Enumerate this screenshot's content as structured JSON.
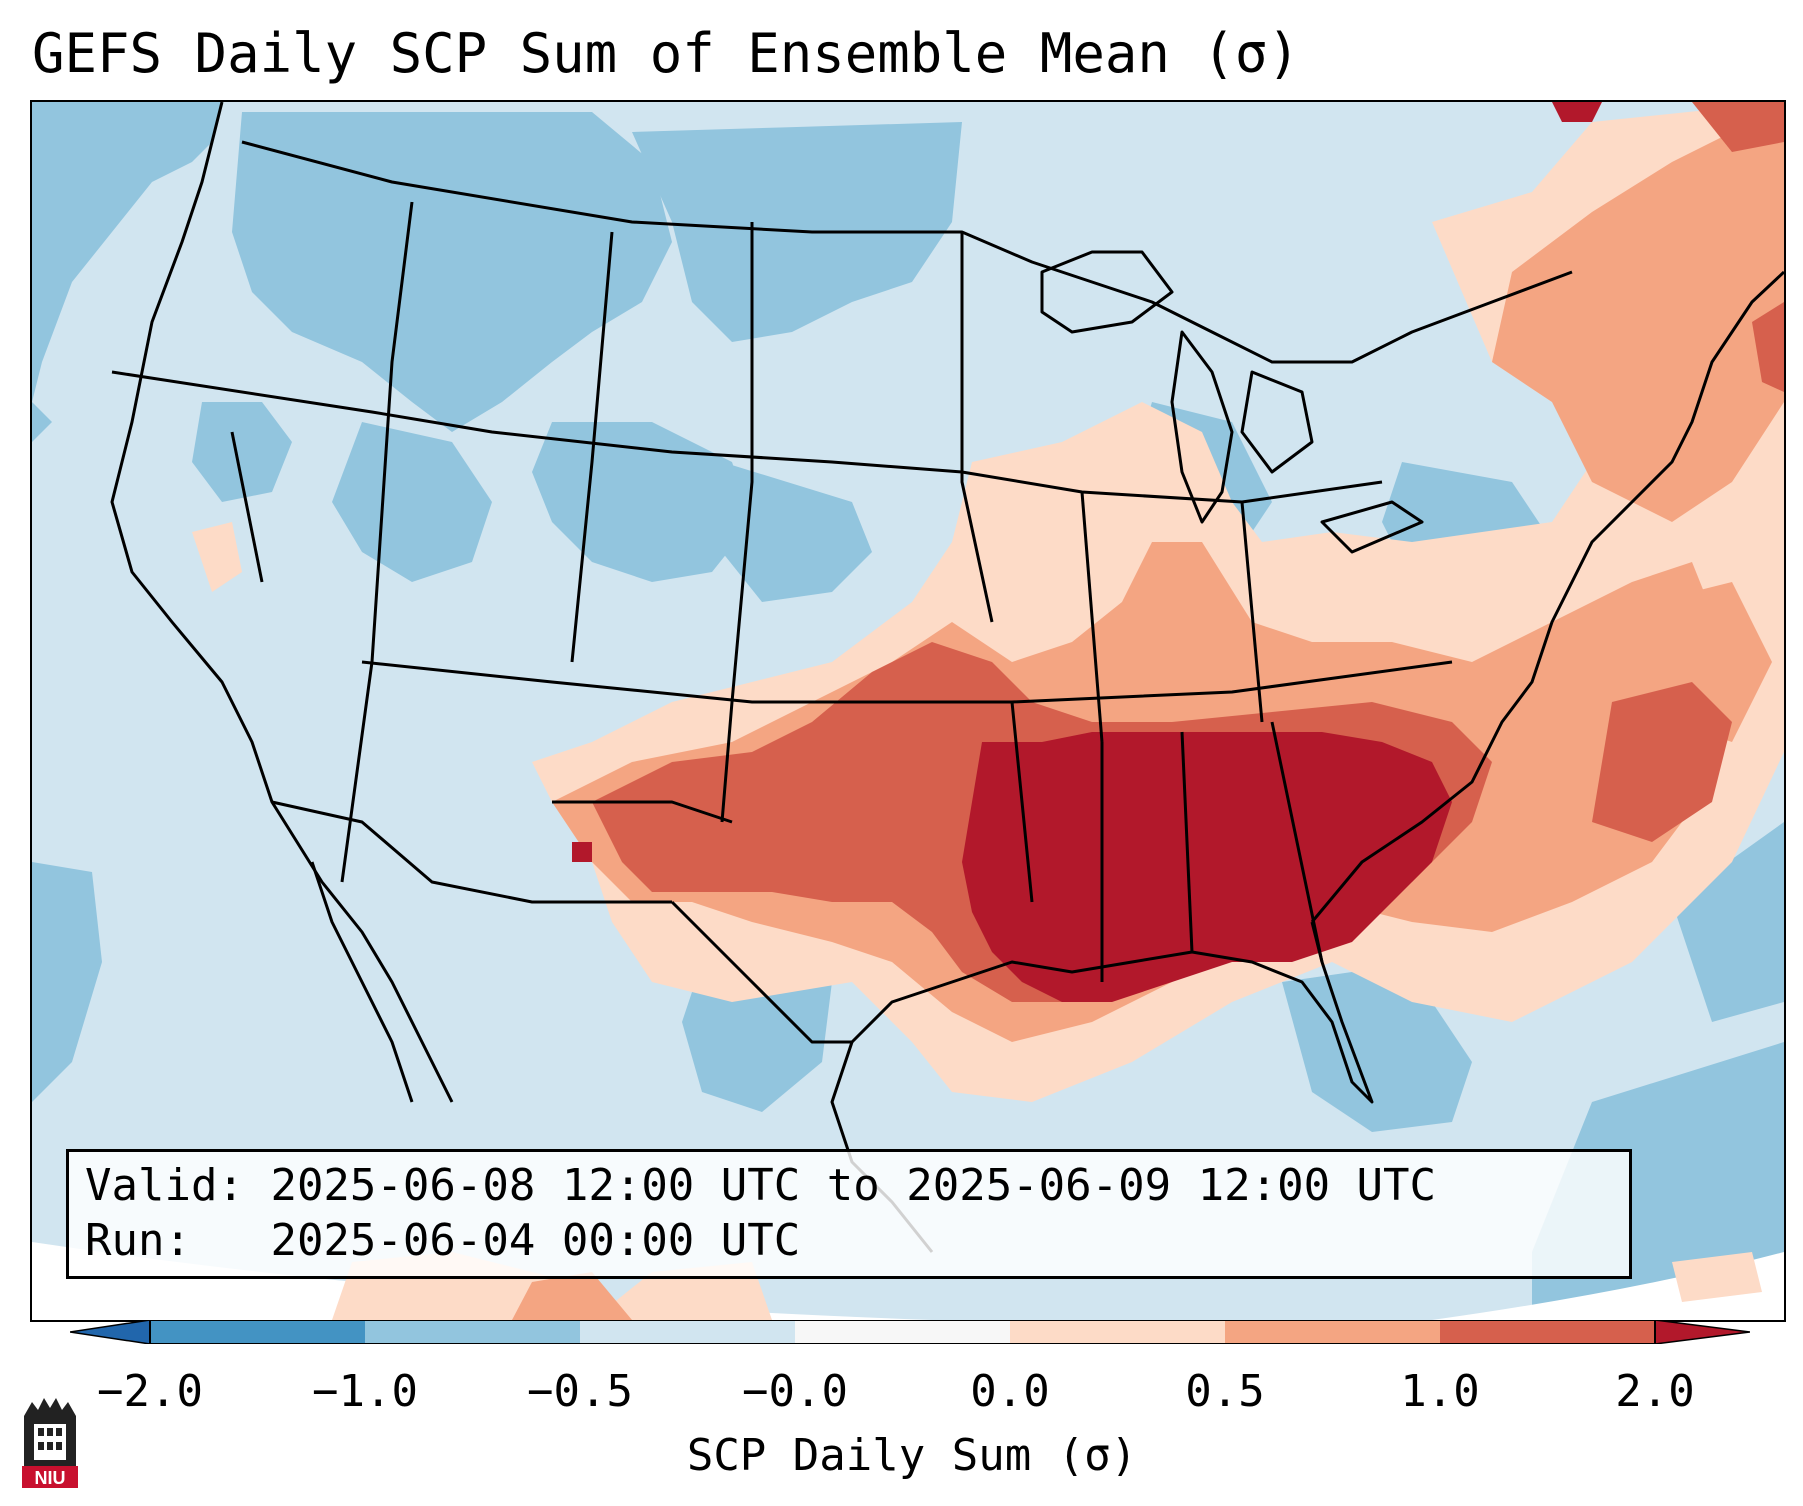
{
  "title": "GEFS Daily SCP Sum of Ensemble Mean (σ)",
  "info": {
    "valid_label": "Valid:",
    "valid_value": "2025-06-08 12:00 UTC to 2025-06-09 12:00 UTC",
    "run_label": "Run:",
    "run_value": "2025-06-04 00:00 UTC"
  },
  "colorbar": {
    "label": "SCP Daily Sum (σ)",
    "ticks": [
      "−2.0",
      "−1.0",
      "−0.5",
      "−0.0",
      "0.0",
      "0.5",
      "1.0",
      "2.0"
    ],
    "colors": [
      "#4393c3",
      "#92c5de",
      "#d1e5f0",
      "#f7f7f7",
      "#fddbc7",
      "#f4a582",
      "#d6604d",
      "#b2182b"
    ],
    "extend_low_color": "#2166ac",
    "extend_high_color": "#b2182b"
  },
  "logo": {
    "text": "NIU",
    "color": "#c8102e"
  },
  "map_colors": {
    "ocean_edge": "#92c5de",
    "background": "#d1e5f0",
    "neg_strong": "#92c5de",
    "pos_weak": "#fddbc7",
    "pos_mid": "#f4a582",
    "pos_high": "#d6604d",
    "pos_max": "#b2182b",
    "borders": "#000000"
  }
}
